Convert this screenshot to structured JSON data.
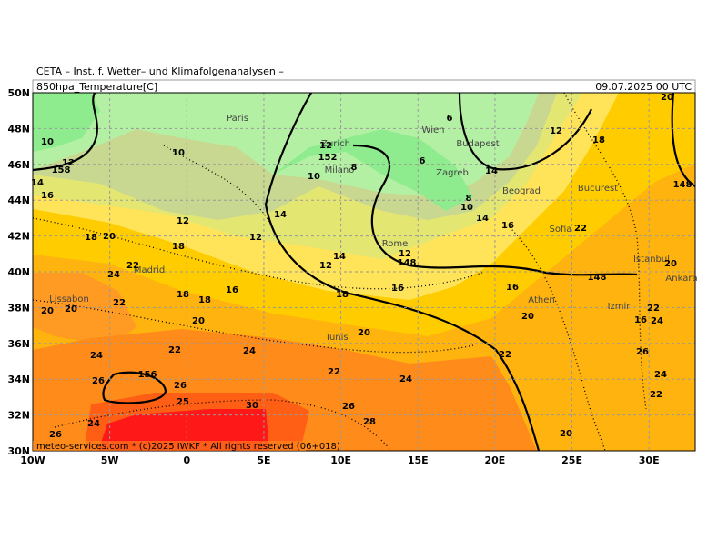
{
  "header": {
    "institute": "CETA – Inst. f. Wetter– und Klimafolgenanalysen –",
    "field": "850hpa_Temperature[C]",
    "valid_time": "09.07.2025 00 UTC"
  },
  "footer": "meteo-services.com * (c)2025 IWKF * All rights reserved (06+018)",
  "axes": {
    "longitude": [
      "10W",
      "5W",
      "0",
      "5E",
      "10E",
      "15E",
      "20E",
      "25E",
      "30E"
    ],
    "latitude": [
      "50N",
      "48N",
      "46N",
      "44N",
      "42N",
      "40N",
      "38N",
      "36N",
      "34N",
      "32N",
      "30N"
    ]
  },
  "cities": [
    "Paris",
    "Zurich",
    "Milano",
    "Wien",
    "Budapest",
    "Zagreb",
    "Beograd",
    "Bucurest",
    "Sofia",
    "Rome",
    "Madrid",
    "Lissabon",
    "Tunis",
    "Athen",
    "Istanbul",
    "Ankara",
    "Izmir"
  ],
  "contour_labels": [
    "10",
    "12",
    "158",
    "14",
    "16",
    "10",
    "12",
    "18",
    "20",
    "22",
    "24",
    "18",
    "22",
    "20",
    "20",
    "18",
    "18",
    "16",
    "12",
    "14",
    "20",
    "22",
    "24",
    "24",
    "26",
    "156",
    "26",
    "25",
    "30",
    "24",
    "26",
    "26",
    "28",
    "22",
    "24",
    "20",
    "18",
    "16",
    "12",
    "14",
    "12",
    "148",
    "10",
    "152",
    "12",
    "8",
    "6",
    "6",
    "14",
    "8",
    "10",
    "14",
    "16",
    "22",
    "12",
    "18",
    "20",
    "148",
    "148",
    "16",
    "20",
    "22",
    "20",
    "22",
    "16",
    "24",
    "26",
    "24",
    "22",
    "20"
  ]
}
